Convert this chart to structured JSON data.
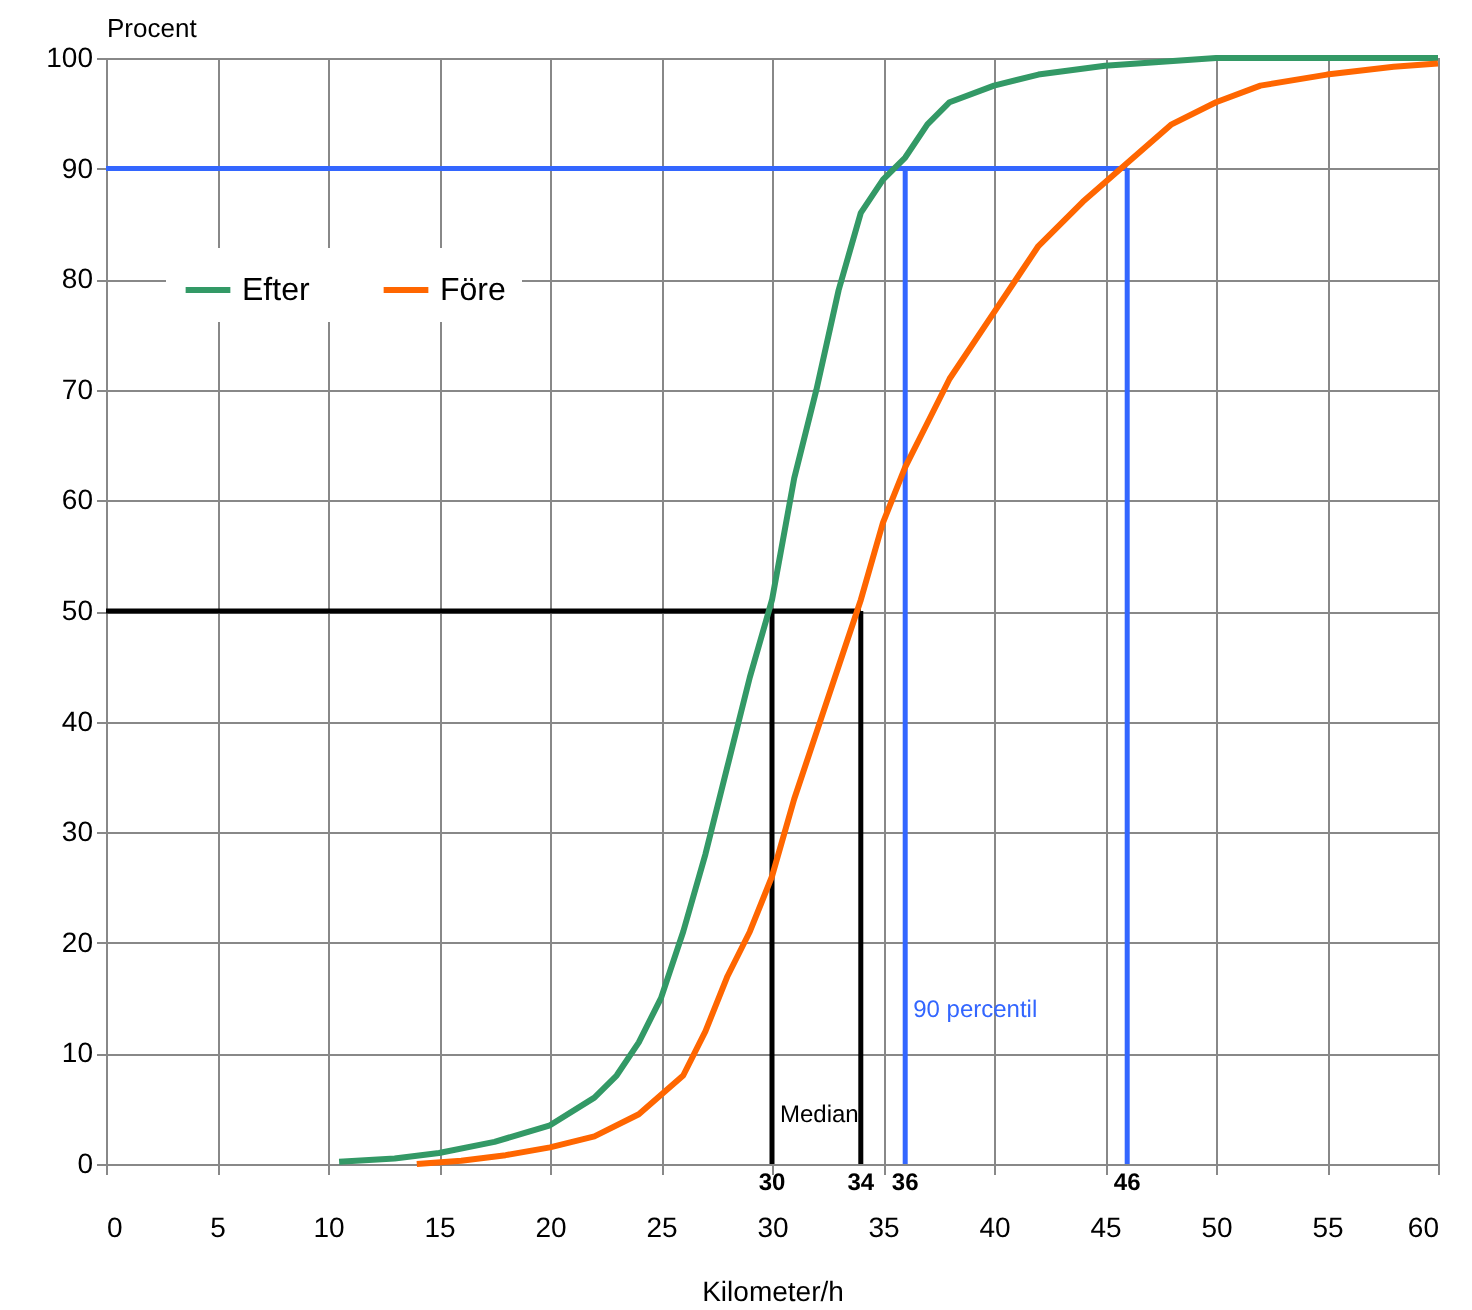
{
  "chart_data": {
    "type": "line",
    "xlabel": "Kilometer/h",
    "ylabel": "Procent",
    "xlim": [
      0,
      60
    ],
    "xticks": [
      0,
      5,
      10,
      15,
      20,
      25,
      30,
      35,
      40,
      45,
      50,
      55,
      60
    ],
    "ylim": [
      0,
      100
    ],
    "yticks": [
      0,
      10,
      20,
      30,
      40,
      50,
      60,
      70,
      80,
      90,
      100
    ],
    "grid": true,
    "legend": "top left",
    "line_style": "solid",
    "marker": "none",
    "series": [
      {
        "name": "Efter",
        "color": "#339966",
        "x": [
          10.5,
          13,
          15,
          17.5,
          20,
          22,
          23,
          24,
          25,
          26,
          27,
          28,
          29,
          30,
          31,
          32,
          33,
          34,
          35,
          36,
          37,
          38,
          40,
          42,
          45,
          50,
          55,
          60
        ],
        "values": [
          0.2,
          0.5,
          1,
          2,
          3.5,
          6,
          8,
          11,
          15,
          21,
          28,
          36,
          44,
          51,
          62,
          70,
          79,
          86,
          89,
          91,
          94,
          96,
          97.5,
          98.5,
          99.3,
          100,
          100,
          100
        ]
      },
      {
        "name": "Före",
        "color": "#ff6600",
        "x": [
          14,
          16,
          18,
          20,
          22,
          24,
          26,
          27,
          28,
          29,
          30,
          31,
          32,
          33,
          34,
          35,
          36,
          37,
          38,
          40,
          42,
          44,
          46,
          48,
          50,
          52,
          55,
          58,
          60
        ],
        "values": [
          0,
          0.3,
          0.8,
          1.5,
          2.5,
          4.5,
          8,
          12,
          17,
          21,
          26,
          33,
          39,
          45,
          51,
          58,
          63,
          67,
          71,
          77,
          83,
          87,
          90.5,
          94,
          96,
          97.5,
          98.5,
          99.2,
          99.5
        ]
      }
    ],
    "ref_lines": [
      {
        "axis": "y",
        "value": 50,
        "color": "#000000"
      },
      {
        "axis": "x",
        "value": 30,
        "label": "30",
        "color": "#000000"
      },
      {
        "axis": "x",
        "value": 34,
        "label": "34",
        "color": "#000000"
      },
      {
        "axis": "y",
        "value": 90,
        "color": "#3366ff"
      },
      {
        "axis": "x",
        "value": 36,
        "label": "36",
        "color": "#3366ff"
      },
      {
        "axis": "x",
        "value": 46,
        "label": "46",
        "color": "#3366ff"
      }
    ],
    "annotations": [
      {
        "text": "Median",
        "x": 30,
        "y": 4.5
      },
      {
        "text": "90 percentil",
        "x": 36,
        "y": 14
      }
    ]
  }
}
